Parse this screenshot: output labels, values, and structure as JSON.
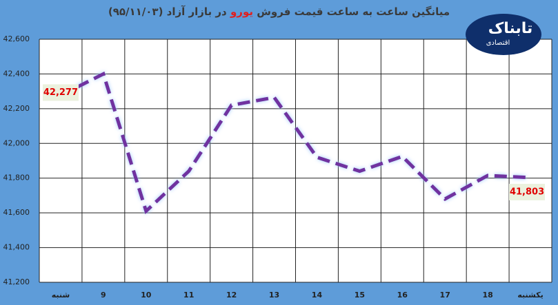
{
  "chart_data": {
    "type": "line",
    "title": "میانگین ساعت به ساعت قیمت فروش",
    "title_highlight": "یورو",
    "title_rest": "در بازار آزاد (۹۵/۱۱/۰۳)",
    "logo": "تابناک",
    "logo_sub": "اقتصادی",
    "categories": [
      "شنبه",
      "9",
      "10",
      "11",
      "12",
      "13",
      "14",
      "15",
      "16",
      "17",
      "18",
      "یکشنبه"
    ],
    "series": [
      {
        "name": "یورو",
        "color": "#7030a0",
        "values": [
          42277,
          42400,
          41610,
          41840,
          42220,
          42265,
          41920,
          41840,
          41925,
          41680,
          41815,
          41803
        ],
        "value_labels": [
          "42,277",
          null,
          null,
          null,
          null,
          null,
          null,
          null,
          null,
          null,
          null,
          "41,803"
        ]
      }
    ],
    "ylim": [
      41200,
      42600
    ],
    "yticks": [
      {
        "value": 41200,
        "label": "41,200"
      },
      {
        "value": 41400,
        "label": "41,400"
      },
      {
        "value": 41600,
        "label": "41,600"
      },
      {
        "value": 41800,
        "label": "41,800"
      },
      {
        "value": 42000,
        "label": "42,000"
      },
      {
        "value": 42200,
        "label": "42,200"
      },
      {
        "value": 42400,
        "label": "42,400"
      },
      {
        "value": 42600,
        "label": "42,600"
      }
    ],
    "grid": true,
    "dashed": true
  }
}
